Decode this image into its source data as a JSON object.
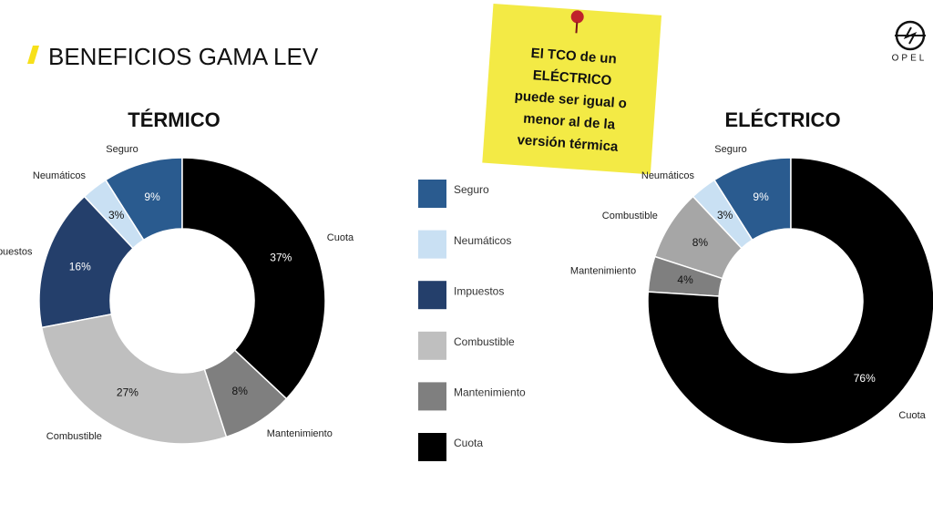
{
  "header": {
    "title": "BENEFICIOS GAMA LEV",
    "logo": "OPEL"
  },
  "note": {
    "lines": [
      "El  TCO de un",
      "ELÉCTRICO",
      "puede ser igual o",
      "menor al de la",
      "versión térmica"
    ]
  },
  "legend": {
    "labels": [
      "Seguro",
      "Neumáticos",
      "Impuestos",
      "Combustible",
      "Mantenimiento",
      "Cuota"
    ],
    "colors": [
      "#2a5b8f",
      "#c9e0f3",
      "#243f6b",
      "#bfbfbf",
      "#7f7f7f",
      "#000000"
    ]
  },
  "chart_data": [
    {
      "type": "pie",
      "title": "TÉRMICO",
      "categories": [
        "Seguro",
        "Neumáticos",
        "Impuestos",
        "Combustible",
        "Mantenimiento",
        "Cuota"
      ],
      "values": [
        9,
        3,
        16,
        27,
        8,
        37
      ],
      "value_labels": [
        "9%",
        "3%",
        "16%",
        "27%",
        "8%",
        "37%"
      ],
      "colors": [
        "#2a5b8f",
        "#c9e0f3",
        "#243f6b",
        "#bfbfbf",
        "#7f7f7f",
        "#000000"
      ]
    },
    {
      "type": "pie",
      "title": "ELÉCTRICO",
      "categories": [
        "Seguro",
        "Neumáticos",
        "Combustible",
        "Mantenimiento",
        "Cuota"
      ],
      "values": [
        9,
        3,
        8,
        4,
        76
      ],
      "value_labels": [
        "9%",
        "3%",
        "8%",
        "4%",
        "76%"
      ],
      "colors": [
        "#2a5b8f",
        "#c9e0f3",
        "#a6a6a6",
        "#7f7f7f",
        "#000000"
      ]
    }
  ]
}
